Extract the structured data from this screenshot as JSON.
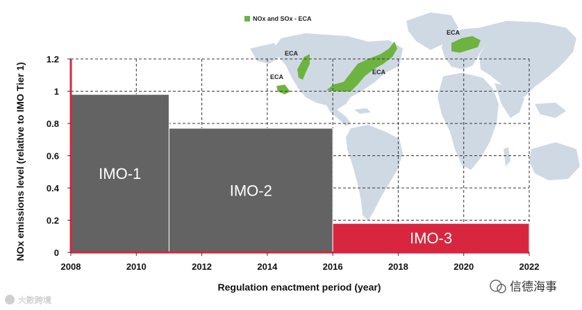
{
  "chart_data": {
    "type": "bar",
    "xlabel": "Regulation enactment period (year)",
    "ylabel": "NOx emissions level (relative to IMO Tier 1)",
    "xlim": [
      2008,
      2022
    ],
    "ylim": [
      0,
      1.2
    ],
    "x_ticks": [
      "2008",
      "2010",
      "2012",
      "2014",
      "2016",
      "2018",
      "2020",
      "2022"
    ],
    "y_ticks": [
      "0",
      "0.2",
      "0.4",
      "0.6",
      "0.8",
      "1",
      "1.2"
    ],
    "x_tick_values": [
      2008,
      2010,
      2012,
      2014,
      2016,
      2018,
      2020,
      2022
    ],
    "y_tick_values": [
      0,
      0.2,
      0.4,
      0.6,
      0.8,
      1,
      1.2
    ],
    "bars": [
      {
        "label": "IMO-1",
        "x_start": 2008,
        "x_end": 2011,
        "value": 0.98,
        "color": "#636363"
      },
      {
        "label": "IMO-2",
        "x_start": 2011,
        "x_end": 2016,
        "value": 0.77,
        "color": "#636363"
      },
      {
        "label": "IMO-3",
        "x_start": 2016,
        "x_end": 2022,
        "value": 0.18,
        "color": "#d9263f"
      }
    ],
    "grid": true,
    "axis_color": "#d9263f"
  },
  "map": {
    "legend_label": "NOx and SOx - ECA",
    "eca_color": "#6db33f",
    "land_color": "#cfd9e3",
    "eca_labels": [
      "ECA",
      "ECA",
      "ECA",
      "ECA"
    ]
  },
  "watermarks": {
    "left": "大数跨境",
    "right": "信德海事"
  }
}
